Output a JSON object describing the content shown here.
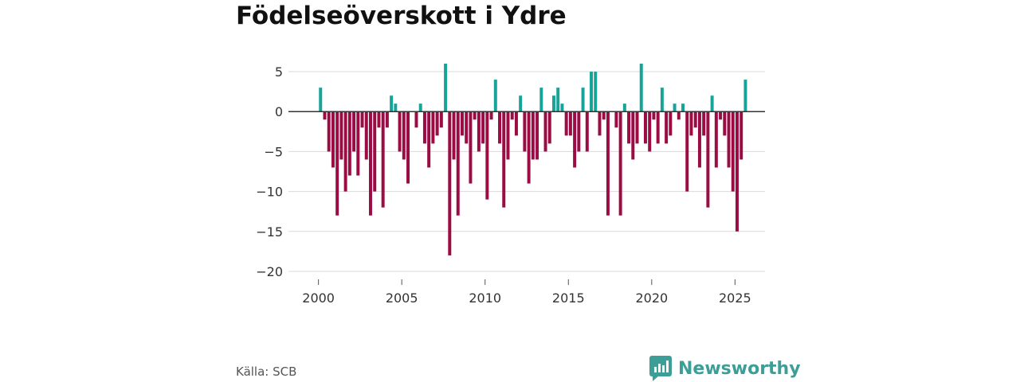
{
  "header": {
    "title": "Födelseöverskott i Ydre"
  },
  "footer": {
    "source": "Källa: SCB",
    "brand": "Newsworthy"
  },
  "colors": {
    "positive": "#17a398",
    "negative": "#9b0b44",
    "grid": "#d9d9d9",
    "zero": "#333333",
    "brand": "#3c9e96"
  },
  "chart_data": {
    "type": "bar",
    "title": "Födelseöverskott i Ydre",
    "xlabel": "",
    "ylabel": "",
    "x_ticks": [
      2000,
      2005,
      2010,
      2015,
      2020,
      2025
    ],
    "x_tick_labels": [
      "2000",
      "2005",
      "2010",
      "2015",
      "2020",
      "2025"
    ],
    "y_ticks": [
      5,
      0,
      -5,
      -10,
      -15,
      -20
    ],
    "y_tick_labels": [
      "5",
      "0",
      "−5",
      "−10",
      "−15",
      "−20"
    ],
    "ylim": [
      -20,
      6
    ],
    "xlim": [
      1998.2,
      2026.8
    ],
    "bar_width_years": 0.19,
    "series": [
      {
        "name": "Födelseöverskott per kvartal",
        "x": [
          2000.125,
          2000.375,
          2000.625,
          2000.875,
          2001.125,
          2001.375,
          2001.625,
          2001.875,
          2002.125,
          2002.375,
          2002.625,
          2002.875,
          2003.125,
          2003.375,
          2003.625,
          2003.875,
          2004.125,
          2004.375,
          2004.625,
          2004.875,
          2005.125,
          2005.375,
          2005.625,
          2005.875,
          2006.125,
          2006.375,
          2006.625,
          2006.875,
          2007.125,
          2007.375,
          2007.625,
          2007.875,
          2008.125,
          2008.375,
          2008.625,
          2008.875,
          2009.125,
          2009.375,
          2009.625,
          2009.875,
          2010.125,
          2010.375,
          2010.625,
          2010.875,
          2011.125,
          2011.375,
          2011.625,
          2011.875,
          2012.125,
          2012.375,
          2012.625,
          2012.875,
          2013.125,
          2013.375,
          2013.625,
          2013.875,
          2014.125,
          2014.375,
          2014.625,
          2014.875,
          2015.125,
          2015.375,
          2015.625,
          2015.875,
          2016.125,
          2016.375,
          2016.625,
          2016.875,
          2017.125,
          2017.375,
          2017.625,
          2017.875,
          2018.125,
          2018.375,
          2018.625,
          2018.875,
          2019.125,
          2019.375,
          2019.625,
          2019.875,
          2020.125,
          2020.375,
          2020.625,
          2020.875,
          2021.125,
          2021.375,
          2021.625,
          2021.875,
          2022.125,
          2022.375,
          2022.625,
          2022.875,
          2023.125,
          2023.375,
          2023.625,
          2023.875,
          2024.125,
          2024.375,
          2024.625,
          2024.875,
          2025.125,
          2025.375,
          2025.625,
          2025.875
        ],
        "values": [
          3,
          -1,
          -5,
          -7,
          -13,
          -6,
          -10,
          -8,
          -5,
          -8,
          -2,
          -6,
          -13,
          -10,
          -2,
          -12,
          -2,
          2,
          1,
          -5,
          -6,
          -9,
          0,
          -2,
          1,
          -4,
          -7,
          -4,
          -3,
          -2,
          6,
          -18,
          -6,
          -13,
          -3,
          -4,
          -9,
          -1,
          -5,
          -4,
          -11,
          -1,
          4,
          -4,
          -12,
          -6,
          -1,
          -3,
          2,
          -5,
          -9,
          -6,
          -6,
          3,
          -5,
          -4,
          2,
          3,
          1,
          -3,
          -3,
          -7,
          -5,
          3,
          -5,
          5,
          5,
          -3,
          -1,
          -13,
          0,
          -2,
          -13,
          1,
          -4,
          -6,
          -4,
          6,
          -4,
          -5,
          -1,
          -4,
          3,
          -4,
          -3,
          1,
          -1,
          1,
          -10,
          -3,
          -2,
          -7,
          -3,
          -12,
          2,
          -7,
          -1,
          -3,
          -7,
          -10,
          -15,
          -6,
          4,
          0
        ]
      }
    ]
  }
}
